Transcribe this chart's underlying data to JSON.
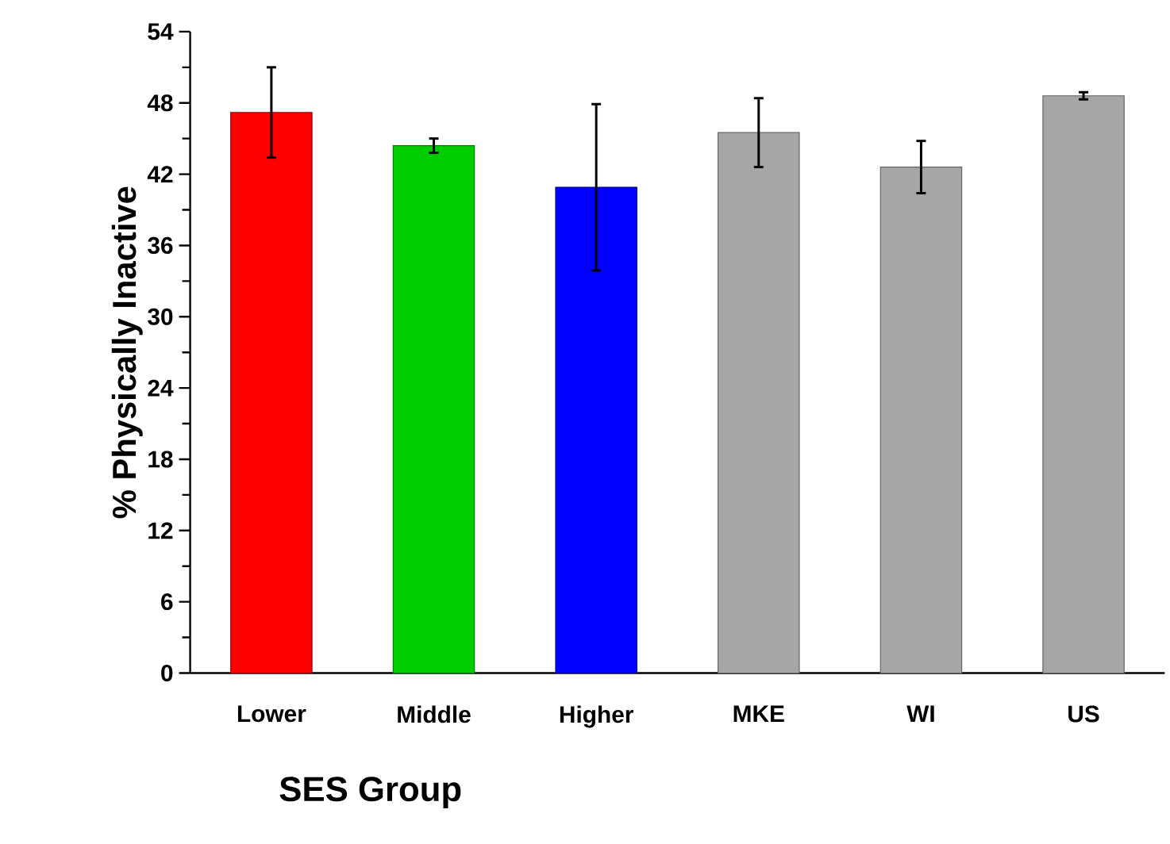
{
  "chart_data": {
    "type": "bar",
    "xlabel": "SES Group",
    "ylabel": "% Physically Inactive",
    "categories": [
      "Lower",
      "Middle",
      "Higher",
      "MKE",
      "WI",
      "US"
    ],
    "values": [
      47.2,
      44.4,
      40.9,
      45.5,
      42.6,
      48.6
    ],
    "errors": [
      3.8,
      0.6,
      7.0,
      2.9,
      2.2,
      0.3
    ],
    "colors": [
      "#ff0000",
      "#00cc00",
      "#0000ff",
      "#a6a6a6",
      "#a6a6a6",
      "#a6a6a6"
    ],
    "ylim": [
      0,
      54
    ],
    "yticks": [
      0,
      6,
      12,
      18,
      24,
      30,
      36,
      42,
      48,
      54
    ]
  }
}
